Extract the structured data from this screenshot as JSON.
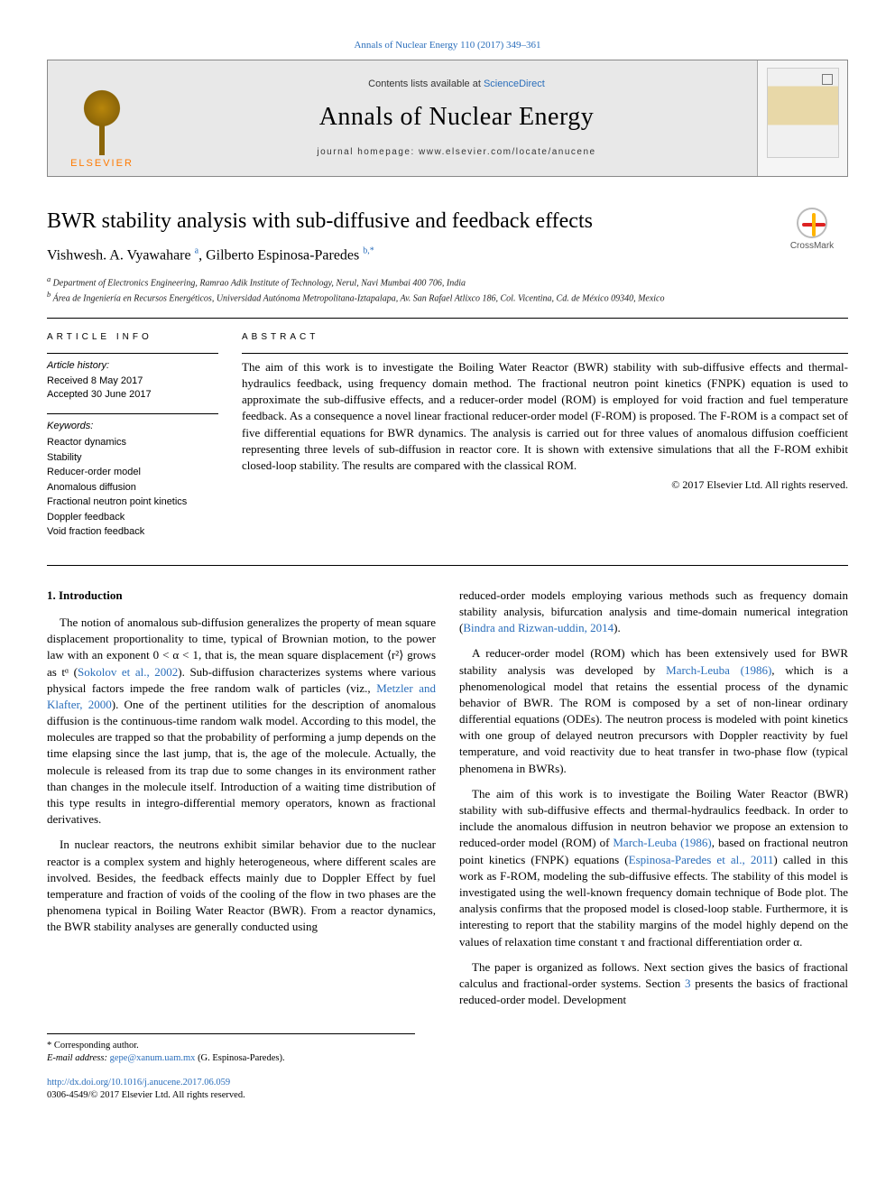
{
  "header": {
    "citation_link": "Annals of Nuclear Energy 110 (2017) 349–361",
    "contents_prefix": "Contents lists available at ",
    "contents_link": "ScienceDirect",
    "journal_name": "Annals of Nuclear Energy",
    "homepage_label": "journal homepage: ",
    "homepage_url": "www.elsevier.com/locate/anucene",
    "elsevier_label": "ELSEVIER"
  },
  "crossmark_label": "CrossMark",
  "article": {
    "title": "BWR stability analysis with sub-diffusive and feedback effects",
    "authors": [
      {
        "name": "Vishwesh. A. Vyawahare",
        "aff": "a"
      },
      {
        "name": "Gilberto Espinosa-Paredes",
        "aff": "b,*"
      }
    ],
    "affiliations": {
      "a": "Department of Electronics Engineering, Ramrao Adik Institute of Technology, Nerul, Navi Mumbai 400 706, India",
      "b": "Área de Ingeniería en Recursos Energéticos, Universidad Autónoma Metropolitana-Iztapalapa, Av. San Rafael Atlixco 186, Col. Vicentina, Cd. de México 09340, Mexico"
    }
  },
  "article_info": {
    "heading": "article info",
    "history_label": "Article history:",
    "received": "Received 8 May 2017",
    "accepted": "Accepted 30 June 2017",
    "keywords_label": "Keywords:",
    "keywords": [
      "Reactor dynamics",
      "Stability",
      "Reducer-order model",
      "Anomalous diffusion",
      "Fractional neutron point kinetics",
      "Doppler feedback",
      "Void fraction feedback"
    ]
  },
  "abstract": {
    "heading": "abstract",
    "text": "The aim of this work is to investigate the Boiling Water Reactor (BWR) stability with sub-diffusive effects and thermal-hydraulics feedback, using frequency domain method. The fractional neutron point kinetics (FNPK) equation is used to approximate the sub-diffusive effects, and a reducer-order model (ROM) is employed for void fraction and fuel temperature feedback. As a consequence a novel linear fractional reducer-order model (F-ROM) is proposed. The F-ROM is a compact set of five differential equations for BWR dynamics. The analysis is carried out for three values of anomalous diffusion coefficient representing three levels of sub-diffusion in reactor core. It is shown with extensive simulations that all the F-ROM exhibit closed-loop stability. The results are compared with the classical ROM.",
    "copyright": "© 2017 Elsevier Ltd. All rights reserved."
  },
  "body": {
    "section1_heading": "1. Introduction",
    "left": {
      "p1a": "The notion of anomalous sub-diffusion generalizes the property of mean square displacement proportionality to time, typical of Brownian motion, to the power law with an exponent 0 < α < 1, that is, the mean square displacement ⟨r²⟩ grows as tᵅ (",
      "c1": "Sokolov et al., 2002",
      "p1b": "). Sub-diffusion characterizes systems where various physical factors impede the free random walk of particles (viz., ",
      "c2": "Metzler and Klafter, 2000",
      "p1c": "). One of the pertinent utilities for the description of anomalous diffusion is the continuous-time random walk model. According to this model, the molecules are trapped so that the probability of performing a jump depends on the time elapsing since the last jump, that is, the age of the molecule. Actually, the molecule is released from its trap due to some changes in its environment rather than changes in the molecule itself. Introduction of a waiting time distribution of this type results in integro-differential memory operators, known as fractional derivatives.",
      "p2": "In nuclear reactors, the neutrons exhibit similar behavior due to the nuclear reactor is a complex system and highly heterogeneous, where different scales are involved. Besides, the feedback effects mainly due to Doppler Effect by fuel temperature and fraction of voids of the cooling of the flow in two phases are the phenomena typical in Boiling Water Reactor (BWR). From a reactor dynamics, the BWR stability analyses are generally conducted using"
    },
    "right": {
      "p1a": "reduced-order models employing various methods such as frequency domain stability analysis, bifurcation analysis and time-domain numerical integration (",
      "c1": "Bindra and Rizwan-uddin, 2014",
      "p1b": ").",
      "p2a": "A reducer-order model (ROM) which has been extensively used for BWR stability analysis was developed by ",
      "c2": "March-Leuba (1986)",
      "p2b": ", which is a phenomenological model that retains the essential process of the dynamic behavior of BWR. The ROM is composed by a set of non-linear ordinary differential equations (ODEs). The neutron process is modeled with point kinetics with one group of delayed neutron precursors with Doppler reactivity by fuel temperature, and void reactivity due to heat transfer in two-phase flow (typical phenomena in BWRs).",
      "p3a": "The aim of this work is to investigate the Boiling Water Reactor (BWR) stability with sub-diffusive effects and thermal-hydraulics feedback. In order to include the anomalous diffusion in neutron behavior we propose an extension to reduced-order model (ROM) of ",
      "c3": "March-Leuba (1986)",
      "p3b": ", based on fractional neutron point kinetics (FNPK) equations (",
      "c4": "Espinosa-Paredes et al., 2011",
      "p3c": ") called in this work as F-ROM, modeling the sub-diffusive effects. The stability of this model is investigated using the well-known frequency domain technique of Bode plot. The analysis confirms that the proposed model is closed-loop stable. Furthermore, it is interesting to report that the stability margins of the model highly depend on the values of relaxation time constant τ and fractional differentiation order α.",
      "p4a": "The paper is organized as follows. Next section gives the basics of fractional calculus and fractional-order systems. Section ",
      "c5": "3",
      "p4b": " presents the basics of fractional reduced-order model. Development"
    }
  },
  "footer": {
    "corr_label": "* Corresponding author.",
    "email_label": "E-mail address: ",
    "email": "gepe@xanum.uam.mx",
    "email_suffix": " (G. Espinosa-Paredes).",
    "doi": "http://dx.doi.org/10.1016/j.anucene.2017.06.059",
    "issn_line": "0306-4549/© 2017 Elsevier Ltd. All rights reserved."
  },
  "colors": {
    "link": "#2a6ebb",
    "elsevier_orange": "#ff7a00",
    "banner_bg": "#e8e8e8",
    "text": "#000000"
  }
}
